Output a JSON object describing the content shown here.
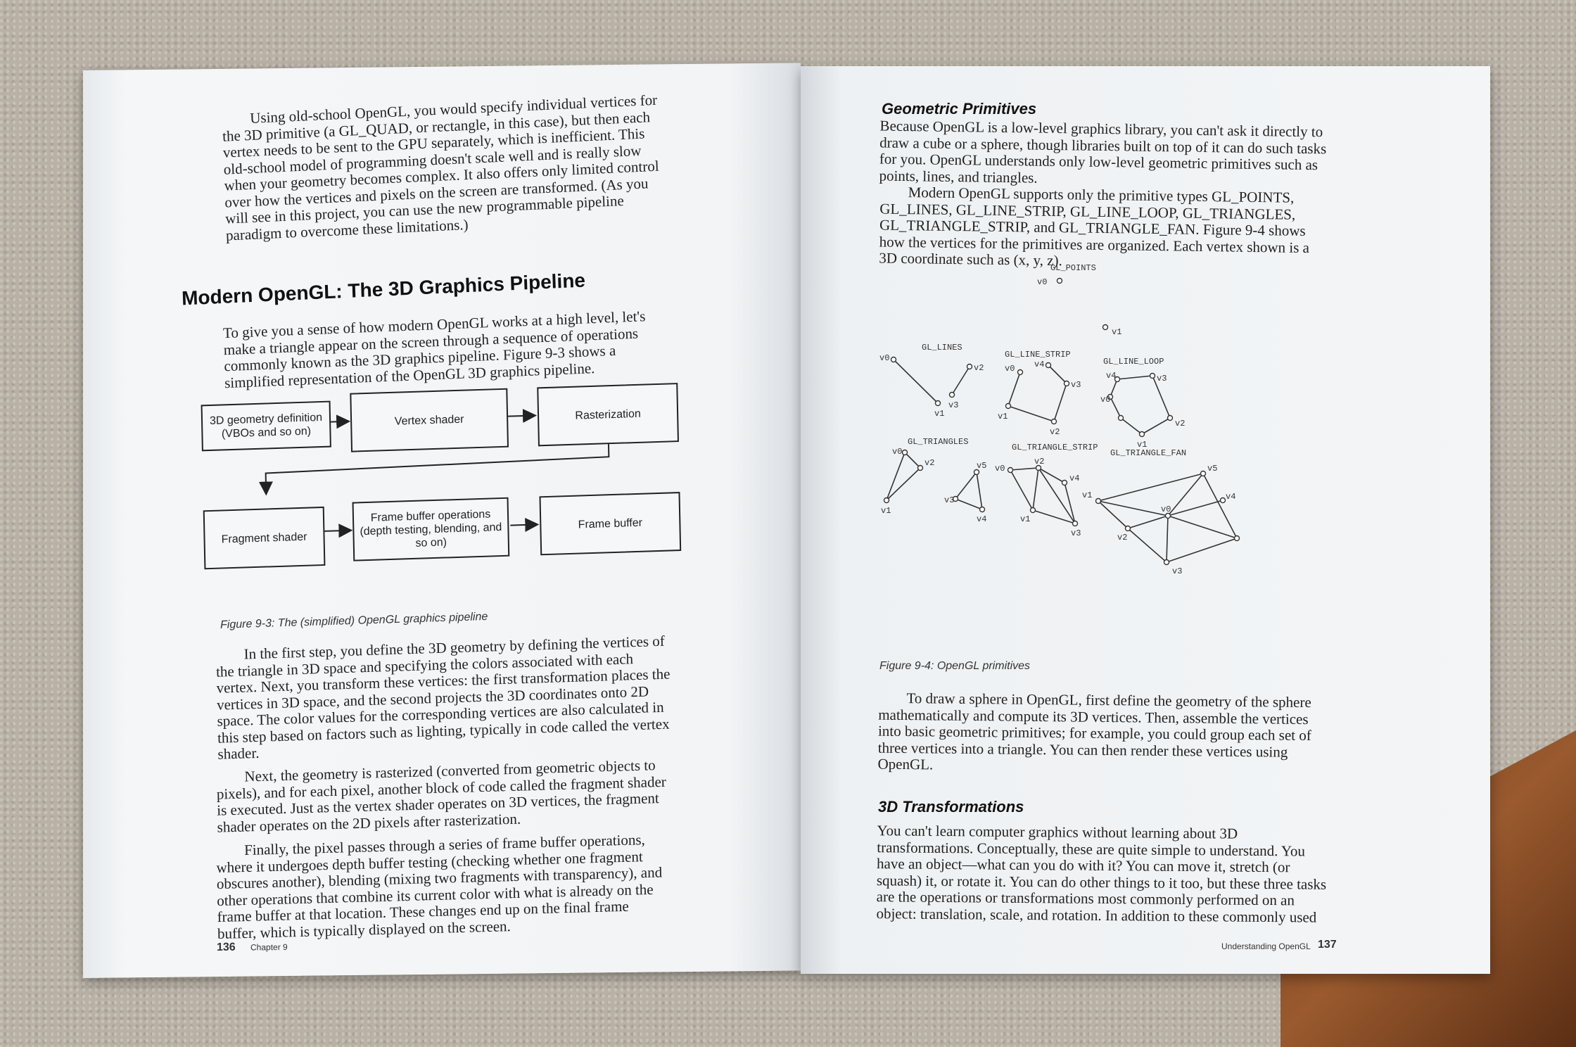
{
  "left_page": {
    "intro": "Using old-school OpenGL, you would specify individual vertices for the 3D primitive (a GL_QUAD, or rectangle, in this case), but then each vertex needs to be sent to the GPU separately, which is inefficient. This old-school model of programming doesn't scale well and is really slow when your geometry becomes complex. It also offers only limited control over how the vertices and pixels on the screen are transformed. (As you will see in this project, you can use the new programmable pipeline paradigm to overcome these limitations.)",
    "heading": "Modern OpenGL: The 3D Graphics Pipeline",
    "para1": "To give you a sense of how modern OpenGL works at a high level, let's make a triangle appear on the screen through a sequence of operations commonly known as the 3D graphics pipeline. Figure 9-3 shows a simplified representation of the OpenGL 3D graphics pipeline.",
    "pipeline": {
      "geometry": "3D geometry definition (VBOs and so on)",
      "vertex": "Vertex shader",
      "raster": "Rasterization",
      "fragment": "Fragment shader",
      "framebuffer_ops": "Frame buffer operations (depth testing, blending, and so on)",
      "framebuffer": "Frame buffer"
    },
    "caption": "Figure 9-3: The (simplified) OpenGL graphics pipeline",
    "para2": "In the first step, you define the 3D geometry by defining the vertices of the triangle in 3D space and specifying the colors associated with each vertex. Next, you transform these vertices: the first transformation places the vertices in 3D space, and the second projects the 3D coordinates onto 2D space. The color values for the corresponding vertices are also calculated in this step based on factors such as lighting, typically in code called the vertex shader.",
    "para3": "Next, the geometry is rasterized (converted from geometric objects to pixels), and for each pixel, another block of code called the fragment shader is executed. Just as the vertex shader operates on 3D vertices, the fragment shader operates on the 2D pixels after rasterization.",
    "para4": "Finally, the pixel passes through a series of frame buffer operations, where it undergoes depth buffer testing (checking whether one fragment obscures another), blending (mixing two fragments with transparency), and other operations that combine its current color with what is already on the frame buffer at that location. These changes end up on the final frame buffer, which is typically displayed on the screen.",
    "page_number": "136",
    "running_head": "Chapter 9"
  },
  "right_page": {
    "heading1": "Geometric Primitives",
    "para1": "Because OpenGL is a low-level graphics library, you can't ask it directly to draw a cube or a sphere, though libraries built on top of it can do such tasks for you. OpenGL understands only low-level geometric primitives such as points, lines, and triangles.",
    "para2": "Modern OpenGL supports only the primitive types GL_POINTS, GL_LINES, GL_LINE_STRIP, GL_LINE_LOOP, GL_TRIANGLES, GL_TRIANGLE_STRIP, and GL_TRIANGLE_FAN. Figure 9-4 shows how the vertices for the primitives are organized. Each vertex shown is a 3D coordinate such as (x, y, z).",
    "primitives": {
      "points": "GL_POINTS",
      "lines": "GL_LINES",
      "line_strip": "GL_LINE_STRIP",
      "line_loop": "GL_LINE_LOOP",
      "triangles": "GL_TRIANGLES",
      "triangle_strip": "GL_TRIANGLE_STRIP",
      "triangle_fan": "GL_TRIANGLE_FAN"
    },
    "vertex_labels": [
      "v0",
      "v1",
      "v2",
      "v3",
      "v4",
      "v5"
    ],
    "caption": "Figure 9-4: OpenGL primitives",
    "para3": "To draw a sphere in OpenGL, first define the geometry of the sphere mathematically and compute its 3D vertices. Then, assemble the vertices into basic geometric primitives; for example, you could group each set of three vertices into a triangle. You can then render these vertices using OpenGL.",
    "heading2": "3D Transformations",
    "para4": "You can't learn computer graphics without learning about 3D transformations. Conceptually, these are quite simple to understand. You have an object—what can you do with it? You can move it, stretch (or squash) it, or rotate it. You can do other things to it too, but these three tasks are the operations or transformations most commonly performed on an object: translation, scale, and rotation. In addition to these commonly used",
    "page_number": "137",
    "running_head": "Understanding OpenGL"
  }
}
